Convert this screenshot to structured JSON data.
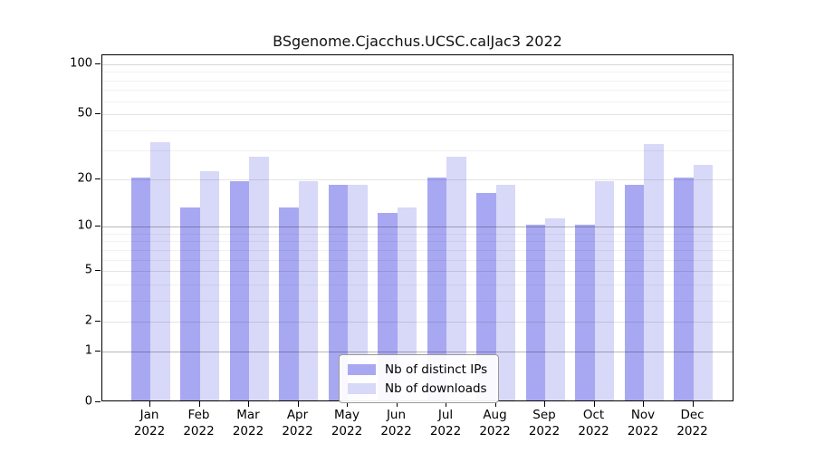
{
  "title": "BSgenome.Cjacchus.UCSC.calJac3 2022",
  "colors": {
    "distinct_ips": "#a8a8f2",
    "downloads": "#d8d8f8",
    "axis": "#000000"
  },
  "legend": {
    "items": [
      {
        "label": "Nb of distinct IPs",
        "series": "distinct_ips"
      },
      {
        "label": "Nb of downloads",
        "series": "downloads"
      }
    ]
  },
  "chart_data": {
    "type": "bar",
    "title": "BSgenome.Cjacchus.UCSC.calJac3 2022",
    "categories": [
      "Jan",
      "Feb",
      "Mar",
      "Apr",
      "May",
      "Jun",
      "Jul",
      "Aug",
      "Sep",
      "Oct",
      "Nov",
      "Dec"
    ],
    "category_year": "2022",
    "series": [
      {
        "name": "Nb of distinct IPs",
        "color_key": "distinct_ips",
        "values": [
          20,
          13,
          19,
          13,
          18,
          12,
          20,
          16,
          10,
          10,
          18,
          20
        ]
      },
      {
        "name": "Nb of downloads",
        "color_key": "downloads",
        "values": [
          33,
          22,
          27,
          19,
          18,
          13,
          27,
          18,
          11,
          19,
          32,
          24
        ]
      }
    ],
    "xlabel": "",
    "ylabel": "",
    "y_scale": "log1p",
    "y_ticks": [
      0,
      1,
      2,
      5,
      10,
      20,
      50,
      100
    ],
    "y_grid_major": [
      1,
      10
    ],
    "y_grid_100": [
      100
    ],
    "y_grid_mid": [
      2,
      5,
      20,
      50
    ],
    "y_grid_minor": [
      3,
      4,
      6,
      7,
      8,
      9,
      30,
      40,
      60,
      70,
      80,
      90
    ],
    "ylim": [
      0,
      114
    ],
    "grid": "on",
    "legend_position": "bottom-center"
  }
}
